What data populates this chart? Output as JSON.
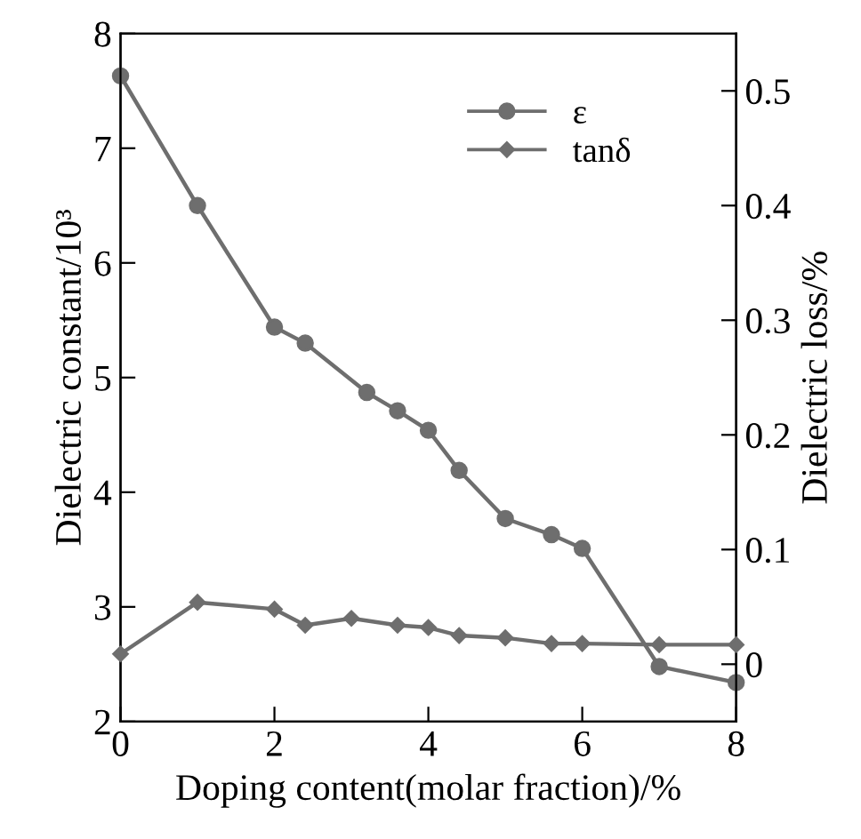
{
  "chart_data": {
    "type": "line",
    "xlabel": "Doping content(molar fraction)/%",
    "ylabel": "Dielectric constant/10³",
    "y2label": "Dielectric loss/%",
    "xlim": [
      0,
      8
    ],
    "xticks": [
      0,
      2,
      4,
      6,
      8
    ],
    "ylim": [
      2,
      8
    ],
    "yticks": [
      2,
      3,
      4,
      5,
      6,
      7,
      8
    ],
    "y2lim": [
      -0.05,
      0.55
    ],
    "y2ticks": [
      0,
      0.1,
      0.2,
      0.3,
      0.4,
      0.5
    ],
    "grid": false,
    "legend": "top right",
    "line_style": "solid",
    "series": [
      {
        "name": "ε",
        "color": "#6e6e6e",
        "marker": "circle",
        "x": [
          0,
          1,
          2,
          2.4,
          3.2,
          3.6,
          4,
          4.4,
          5,
          5.6,
          6,
          7,
          8
        ],
        "values": [
          7.63,
          6.5,
          5.44,
          5.3,
          4.87,
          4.71,
          4.54,
          4.19,
          3.77,
          3.63,
          3.51,
          2.48,
          2.34
        ]
      },
      {
        "name": "tanδ",
        "color": "#6e6e6e",
        "marker": "diamond",
        "axis": "y2",
        "x": [
          0,
          1,
          2,
          2.4,
          3,
          3.6,
          4,
          4.4,
          5,
          5.6,
          6,
          7,
          8
        ],
        "values": [
          0.009,
          0.054,
          0.048,
          0.034,
          0.04,
          0.034,
          0.032,
          0.025,
          0.023,
          0.018,
          0.018,
          0.017,
          0.017
        ]
      }
    ]
  }
}
